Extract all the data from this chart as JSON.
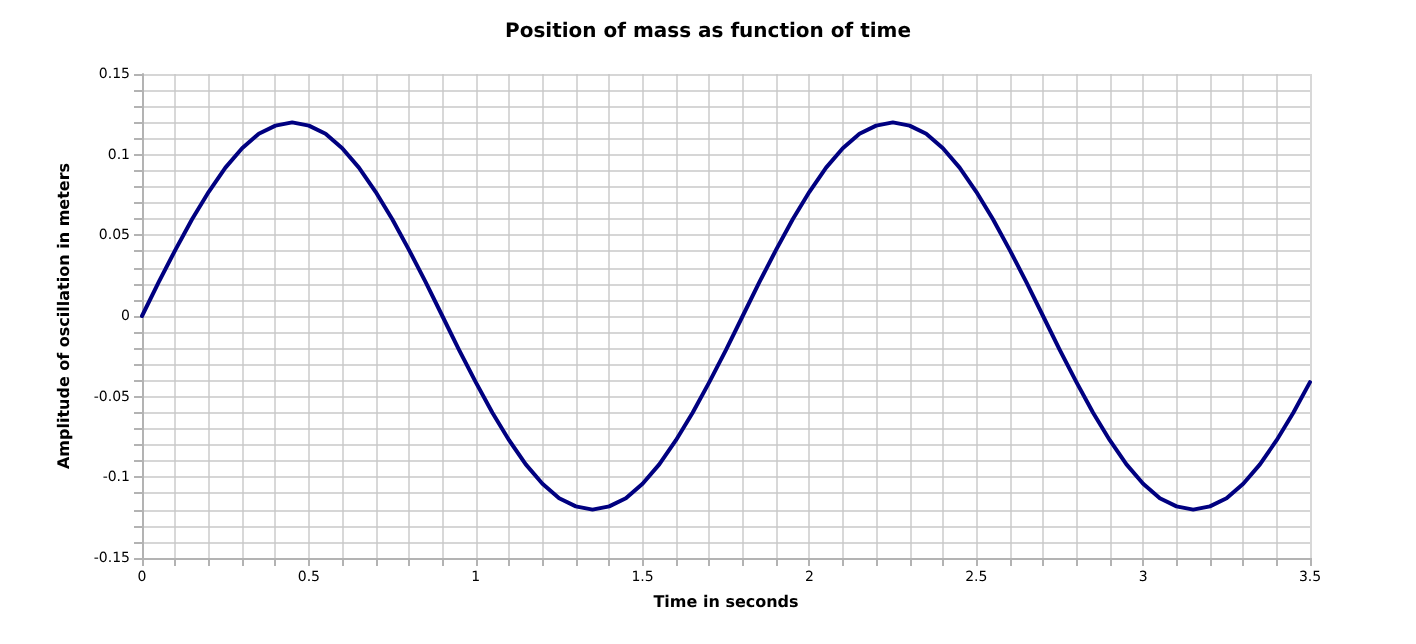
{
  "chart_data": {
    "type": "line",
    "title": "Position of mass as function of time",
    "xlabel": "Time in seconds",
    "ylabel": "Amplitude of oscillation in meters",
    "x": [
      0,
      0.05,
      0.1,
      0.15,
      0.2,
      0.25,
      0.3,
      0.35,
      0.4,
      0.45,
      0.5,
      0.55,
      0.6,
      0.65,
      0.7,
      0.75,
      0.8,
      0.85,
      0.9,
      0.95,
      1,
      1.05,
      1.1,
      1.15,
      1.2,
      1.25,
      1.3,
      1.35,
      1.4,
      1.45,
      1.5,
      1.55,
      1.6,
      1.65,
      1.7,
      1.75,
      1.8,
      1.85,
      1.9,
      1.95,
      2,
      2.05,
      2.1,
      2.15,
      2.2,
      2.25,
      2.3,
      2.35,
      2.4,
      2.45,
      2.5,
      2.55,
      2.6,
      2.65,
      2.7,
      2.75,
      2.8,
      2.85,
      2.9,
      2.95,
      3,
      3.05,
      3.1,
      3.15,
      3.2,
      3.25,
      3.3,
      3.35,
      3.4,
      3.45,
      3.5
    ],
    "series": [
      {
        "color": "#000080",
        "values": [
          0,
          0.021,
          0.041,
          0.06,
          0.077,
          0.092,
          0.104,
          0.113,
          0.118,
          0.12,
          0.118,
          0.113,
          0.104,
          0.092,
          0.077,
          0.06,
          0.041,
          0.021,
          0,
          -0.021,
          -0.041,
          -0.06,
          -0.077,
          -0.092,
          -0.104,
          -0.113,
          -0.118,
          -0.12,
          -0.118,
          -0.113,
          -0.104,
          -0.092,
          -0.077,
          -0.06,
          -0.041,
          -0.021,
          0,
          0.021,
          0.041,
          0.06,
          0.077,
          0.092,
          0.104,
          0.113,
          0.118,
          0.12,
          0.118,
          0.113,
          0.104,
          0.092,
          0.077,
          0.06,
          0.041,
          0.021,
          0,
          -0.021,
          -0.041,
          -0.06,
          -0.077,
          -0.092,
          -0.104,
          -0.113,
          -0.118,
          -0.12,
          -0.118,
          -0.113,
          -0.104,
          -0.092,
          -0.077,
          -0.06,
          -0.041
        ]
      }
    ],
    "xlim": [
      0,
      3.5
    ],
    "xticks": [
      0,
      {
        "value": 0.1,
        "label": null
      },
      {
        "value": 0.2,
        "label": null
      },
      {
        "value": 0.3,
        "label": null
      },
      {
        "value": 0.4,
        "label": null
      },
      0.5,
      {
        "value": 0.6,
        "label": null
      },
      {
        "value": 0.7,
        "label": null
      },
      {
        "value": 0.8,
        "label": null
      },
      {
        "value": 0.9,
        "label": null
      },
      1,
      {
        "value": 1.1,
        "label": null
      },
      {
        "value": 1.2,
        "label": null
      },
      {
        "value": 1.3,
        "label": null
      },
      {
        "value": 1.4,
        "label": null
      },
      1.5,
      {
        "value": 1.6,
        "label": null
      },
      {
        "value": 1.7,
        "label": null
      },
      {
        "value": 1.8,
        "label": null
      },
      {
        "value": 1.9,
        "label": null
      },
      2,
      {
        "value": 2.1,
        "label": null
      },
      {
        "value": 2.2,
        "label": null
      },
      {
        "value": 2.3,
        "label": null
      },
      {
        "value": 2.4,
        "label": null
      },
      2.5,
      {
        "value": 2.6,
        "label": null
      },
      {
        "value": 2.7,
        "label": null
      },
      {
        "value": 2.8,
        "label": null
      },
      {
        "value": 2.9,
        "label": null
      },
      3,
      {
        "value": 3.1,
        "label": null
      },
      {
        "value": 3.2,
        "label": null
      },
      {
        "value": 3.3,
        "label": null
      },
      {
        "value": 3.4,
        "label": null
      },
      3.5
    ],
    "ylim": [
      -0.15,
      0.15
    ],
    "yticks": [
      -0.15,
      {
        "value": -0.14,
        "label": null
      },
      {
        "value": -0.13,
        "label": null
      },
      {
        "value": -0.12,
        "label": null
      },
      {
        "value": -0.11,
        "label": null
      },
      -0.1,
      {
        "value": -0.09,
        "label": null
      },
      {
        "value": -0.08,
        "label": null
      },
      {
        "value": -0.07,
        "label": null
      },
      {
        "value": -0.06,
        "label": null
      },
      -0.05,
      {
        "value": -0.04,
        "label": null
      },
      {
        "value": -0.03,
        "label": null
      },
      {
        "value": -0.02,
        "label": null
      },
      {
        "value": -0.01,
        "label": null
      },
      0,
      {
        "value": 0.01,
        "label": null
      },
      {
        "value": 0.02,
        "label": null
      },
      {
        "value": 0.03,
        "label": null
      },
      {
        "value": 0.04,
        "label": null
      },
      0.05,
      {
        "value": 0.06,
        "label": null
      },
      {
        "value": 0.07,
        "label": null
      },
      {
        "value": 0.08,
        "label": null
      },
      {
        "value": 0.09,
        "label": null
      },
      0.1,
      {
        "value": 0.11,
        "label": null
      },
      {
        "value": 0.12,
        "label": null
      },
      {
        "value": 0.13,
        "label": null
      },
      {
        "value": 0.14,
        "label": null
      },
      0.15
    ],
    "grid": true,
    "marker": "none",
    "line_style": "solid"
  }
}
